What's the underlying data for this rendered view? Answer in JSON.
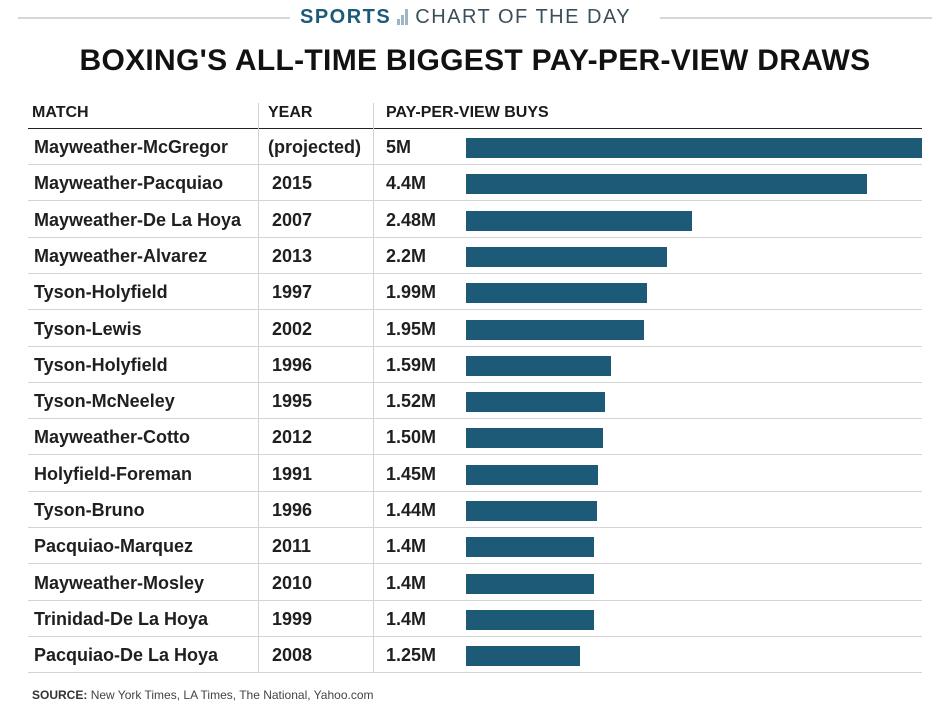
{
  "header": {
    "brand_primary": "SPORTS",
    "brand_secondary": "CHART OF THE DAY",
    "brand_colors": {
      "primary": "#1d5a78",
      "logo": "#9db6c6"
    }
  },
  "chart_data": {
    "type": "bar",
    "orientation": "horizontal",
    "title": "BOXING'S ALL-TIME BIGGEST PAY-PER-VIEW DRAWS",
    "columns": [
      "MATCH",
      "YEAR",
      "PAY-PER-VIEW BUYS"
    ],
    "value_unit": "million buys",
    "xlim": [
      0,
      5
    ],
    "bar_color": "#1d5a78",
    "rows": [
      {
        "match": "Mayweather-McGregor",
        "year": "(projected)",
        "label": "5M",
        "value": 5.0
      },
      {
        "match": "Mayweather-Pacquiao",
        "year": "2015",
        "label": "4.4M",
        "value": 4.4
      },
      {
        "match": "Mayweather-De La Hoya",
        "year": "2007",
        "label": "2.48M",
        "value": 2.48
      },
      {
        "match": "Mayweather-Alvarez",
        "year": "2013",
        "label": "2.2M",
        "value": 2.2
      },
      {
        "match": "Tyson-Holyfield",
        "year": "1997",
        "label": "1.99M",
        "value": 1.99
      },
      {
        "match": "Tyson-Lewis",
        "year": "2002",
        "label": "1.95M",
        "value": 1.95
      },
      {
        "match": "Tyson-Holyfield",
        "year": "1996",
        "label": "1.59M",
        "value": 1.59
      },
      {
        "match": "Tyson-McNeeley",
        "year": "1995",
        "label": "1.52M",
        "value": 1.52
      },
      {
        "match": "Mayweather-Cotto",
        "year": "2012",
        "label": "1.50M",
        "value": 1.5
      },
      {
        "match": "Holyfield-Foreman",
        "year": "1991",
        "label": "1.45M",
        "value": 1.45
      },
      {
        "match": "Tyson-Bruno",
        "year": "1996",
        "label": "1.44M",
        "value": 1.44
      },
      {
        "match": "Pacquiao-Marquez",
        "year": "2011",
        "label": "1.4M",
        "value": 1.4
      },
      {
        "match": "Mayweather-Mosley",
        "year": "2010",
        "label": "1.4M",
        "value": 1.4
      },
      {
        "match": "Trinidad-De La Hoya",
        "year": "1999",
        "label": "1.4M",
        "value": 1.4
      },
      {
        "match": "Pacquiao-De La Hoya",
        "year": "2008",
        "label": "1.25M",
        "value": 1.25
      }
    ]
  },
  "footer": {
    "source_label": "SOURCE:",
    "source_text": "New York Times, LA Times, The National, Yahoo.com"
  }
}
